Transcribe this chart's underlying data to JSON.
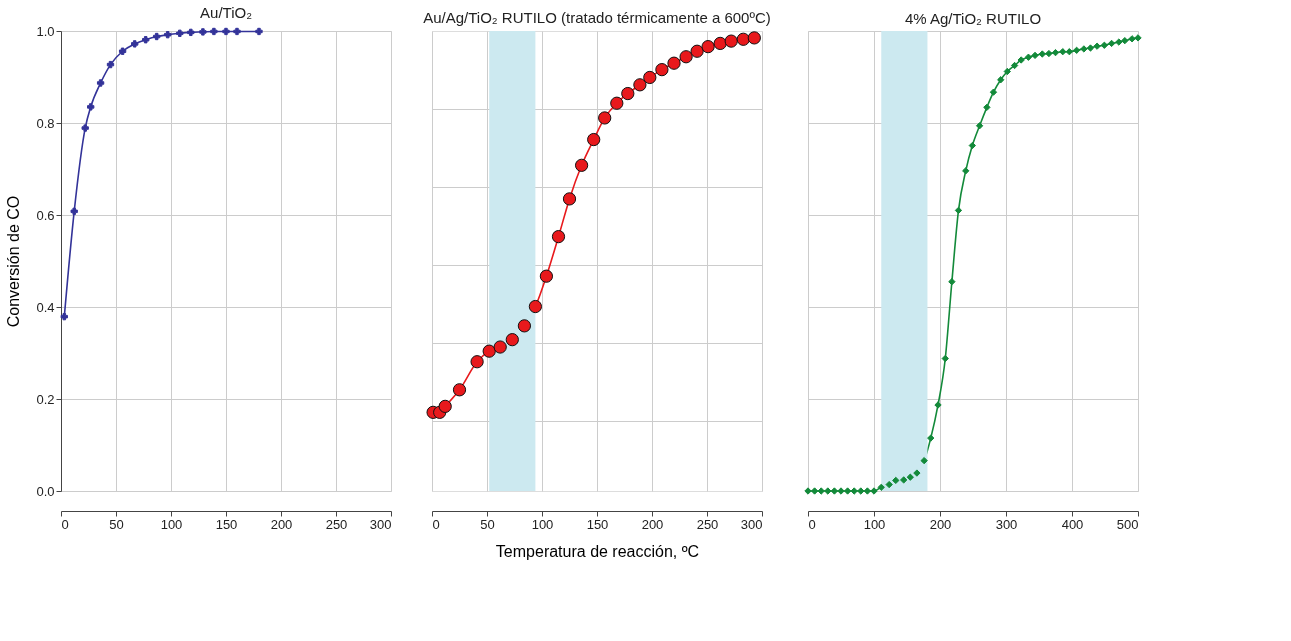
{
  "chart_data": [
    {
      "type": "line",
      "title": "Au/TiO₂",
      "ylabel": "Conversión de CO",
      "xlim": [
        0,
        300
      ],
      "xticks": [
        0,
        50,
        100,
        150,
        200,
        250,
        300
      ],
      "ylim": [
        0,
        1
      ],
      "yticks": [
        {
          "value": 0,
          "label": "0.0"
        },
        0.2,
        0.4,
        0.6,
        0.8,
        {
          "value": 1,
          "label": "1.0"
        }
      ],
      "grid": true,
      "marker": "cross",
      "line_style": "solid",
      "series": [
        {
          "color": "#333399",
          "x": [
            3,
            12,
            22,
            27,
            36,
            45,
            56,
            67,
            77,
            87,
            97,
            108,
            118,
            129,
            139,
            150,
            160,
            180
          ],
          "values": [
            0.379,
            0.608,
            0.789,
            0.835,
            0.887,
            0.927,
            0.956,
            0.972,
            0.981,
            0.988,
            0.992,
            0.995,
            0.997,
            0.998,
            0.999,
            0.999,
            0.999,
            0.999
          ]
        }
      ]
    },
    {
      "type": "line",
      "title": "Au/Ag/TiO₂ RUTILO (tratado térmicamente a 600ºC)",
      "xlabel": "Temperatura de reacción, ºC",
      "xlim": [
        0,
        300
      ],
      "xticks": [
        0,
        50,
        100,
        150,
        200,
        250,
        300
      ],
      "ylim": [
        0,
        1
      ],
      "yticks": [
        {
          "value": 0.152,
          "label": null
        },
        {
          "value": 0.322,
          "label": null
        },
        {
          "value": 0.491,
          "label": null
        },
        {
          "value": 0.661,
          "label": null
        },
        {
          "value": 0.831,
          "label": null
        }
      ],
      "tick_labels": "x",
      "grid": true,
      "marker": "circle",
      "line_style": "solid",
      "bands": [
        {
          "axis": "x",
          "from": 52,
          "to": 94,
          "color": "#cce9f0"
        }
      ],
      "series": [
        {
          "color": "#e8191c",
          "x": [
            1,
            7,
            12,
            25,
            41,
            52,
            62,
            73,
            84,
            94,
            104,
            115,
            125,
            136,
            147,
            157,
            168,
            178,
            189,
            198,
            209,
            220,
            231,
            241,
            251,
            262,
            272,
            283,
            293
          ],
          "values": [
            0.171,
            0.171,
            0.184,
            0.22,
            0.281,
            0.304,
            0.313,
            0.329,
            0.359,
            0.401,
            0.467,
            0.553,
            0.635,
            0.708,
            0.764,
            0.811,
            0.843,
            0.864,
            0.883,
            0.899,
            0.916,
            0.93,
            0.944,
            0.956,
            0.966,
            0.973,
            0.978,
            0.982,
            0.985
          ]
        }
      ]
    },
    {
      "type": "line",
      "title": "4% Ag/TiO₂ RUTILO",
      "xlim": [
        0,
        500
      ],
      "xticks": [
        0,
        100,
        200,
        300,
        400,
        500
      ],
      "ylim": [
        0,
        1
      ],
      "yticks": [
        0,
        0.2,
        0.4,
        0.6,
        0.8,
        1
      ],
      "tick_labels": "x",
      "grid": true,
      "marker": "diamond",
      "line_style": "solid",
      "bands": [
        {
          "axis": "x",
          "from": 111,
          "to": 181,
          "color": "#cce9f0"
        }
      ],
      "series": [
        {
          "color": "#138a3a",
          "x": [
            0,
            10,
            20,
            30,
            40,
            50,
            60,
            70,
            80,
            90,
            100,
            111,
            123,
            133,
            145,
            155,
            165,
            176,
            186,
            197,
            208,
            218,
            228,
            239,
            249,
            260,
            271,
            281,
            292,
            302,
            313,
            323,
            334,
            344,
            355,
            365,
            375,
            386,
            396,
            407,
            418,
            428,
            438,
            449,
            460,
            471,
            480,
            491,
            500
          ],
          "values": [
            0,
            0,
            0,
            0,
            0,
            0,
            0,
            0,
            0,
            0,
            0,
            0.008,
            0.014,
            0.023,
            0.024,
            0.03,
            0.039,
            0.066,
            0.115,
            0.187,
            0.288,
            0.455,
            0.61,
            0.696,
            0.751,
            0.794,
            0.834,
            0.867,
            0.894,
            0.912,
            0.925,
            0.937,
            0.943,
            0.947,
            0.95,
            0.951,
            0.953,
            0.955,
            0.955,
            0.958,
            0.961,
            0.963,
            0.967,
            0.969,
            0.973,
            0.976,
            0.979,
            0.983,
            0.985
          ]
        }
      ]
    }
  ]
}
